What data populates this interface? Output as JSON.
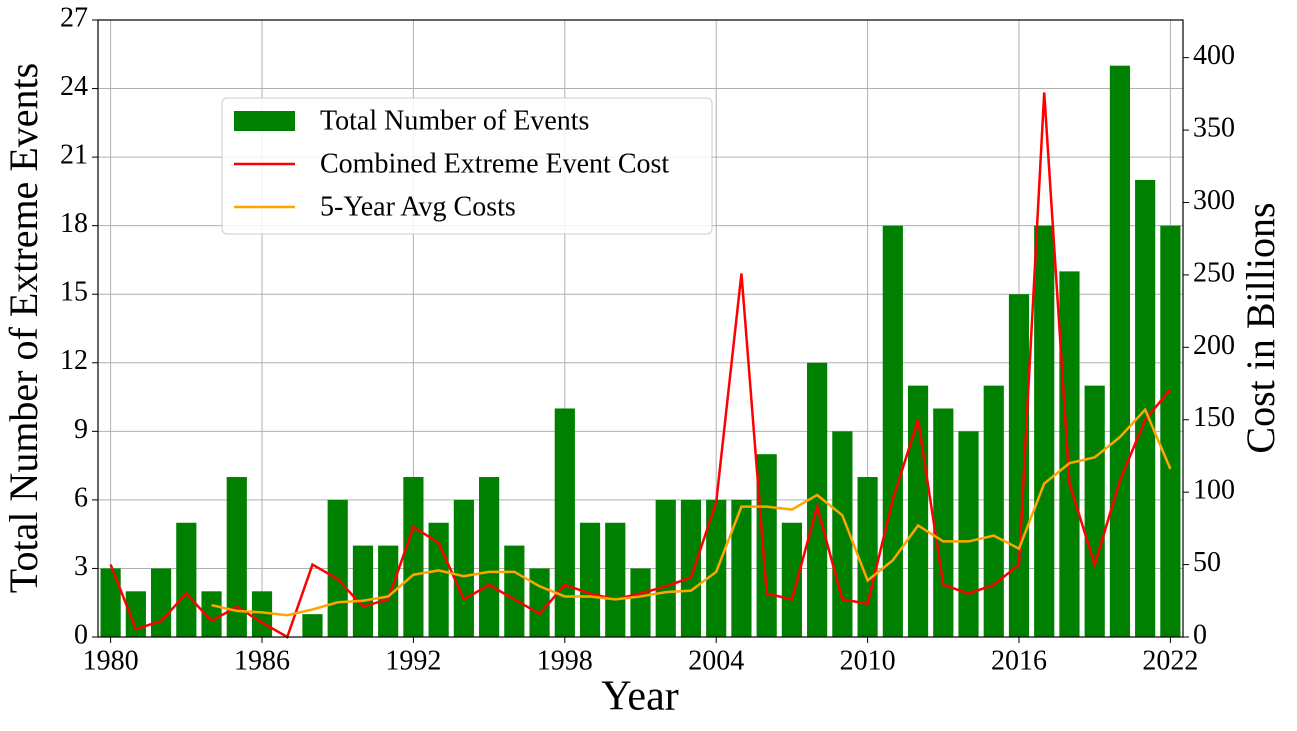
{
  "chart_data": {
    "type": "bar",
    "x": [
      1980,
      1981,
      1982,
      1983,
      1984,
      1985,
      1986,
      1987,
      1988,
      1989,
      1990,
      1991,
      1992,
      1993,
      1994,
      1995,
      1996,
      1997,
      1998,
      1999,
      2000,
      2001,
      2002,
      2003,
      2004,
      2005,
      2006,
      2007,
      2008,
      2009,
      2010,
      2011,
      2012,
      2013,
      2014,
      2015,
      2016,
      2017,
      2018,
      2019,
      2020,
      2021,
      2022
    ],
    "series": [
      {
        "name": "Total Number of Events",
        "type": "bar",
        "color": "#008000",
        "values": [
          3,
          2,
          3,
          5,
          2,
          7,
          2,
          0,
          1,
          6,
          4,
          4,
          7,
          5,
          6,
          7,
          4,
          3,
          10,
          5,
          5,
          3,
          6,
          6,
          6,
          6,
          8,
          5,
          12,
          9,
          7,
          18,
          11,
          10,
          9,
          11,
          15,
          18,
          16,
          11,
          25,
          20,
          18
        ]
      },
      {
        "name": "Combined Extreme Event Cost",
        "type": "line",
        "axis": "y2",
        "color": "#ff0000",
        "values": [
          50,
          5.5,
          11,
          30,
          11,
          21,
          10,
          0,
          50,
          40,
          21,
          26,
          76,
          65,
          26,
          36,
          26,
          16,
          36,
          30,
          26,
          30,
          35,
          41,
          93,
          251,
          30,
          26,
          90,
          26,
          23,
          95,
          150,
          36,
          30,
          36,
          50,
          376,
          106,
          50,
          108,
          150,
          171
        ]
      },
      {
        "name": "5-Year Avg Costs",
        "type": "line",
        "axis": "y2",
        "color": "#ffa500",
        "values": [
          null,
          null,
          null,
          null,
          22,
          18,
          17,
          15,
          19,
          24,
          25,
          28,
          43,
          46,
          42,
          45,
          45,
          35,
          28,
          28,
          26,
          28,
          31,
          32,
          45,
          90,
          90,
          88,
          98,
          84,
          39,
          53,
          77,
          66,
          66,
          70,
          61,
          106,
          120,
          124,
          138,
          157,
          116
        ]
      }
    ],
    "xlabel": "Year",
    "ylabel": "Total Number of Extreme Events",
    "y2label": "Cost in Billions",
    "xlim": [
      1979.5,
      2022.5
    ],
    "xticks": [
      1980,
      1986,
      1992,
      1998,
      2004,
      2010,
      2016,
      2022
    ],
    "ylim": [
      0,
      27
    ],
    "yticks": [
      0,
      3,
      6,
      9,
      12,
      15,
      18,
      21,
      24,
      27
    ],
    "y2lim": [
      0,
      426
    ],
    "y2ticks": [
      0,
      50,
      100,
      150,
      200,
      250,
      300,
      350,
      400
    ],
    "grid": true,
    "legend": "upper left"
  }
}
